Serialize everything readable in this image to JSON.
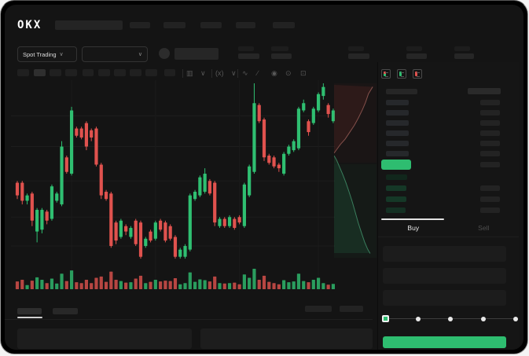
{
  "brand": {
    "logo": "OKX"
  },
  "nav": {
    "item_count": 5
  },
  "market_selector": {
    "label": "Spot Trading",
    "chevron": "∨"
  },
  "pair_selector": {
    "chevron": "∨"
  },
  "toolbar": {
    "active_timeframe_index": 1,
    "timeframe_widths": [
      15,
      15,
      15,
      15,
      14,
      15,
      15,
      15,
      15,
      14
    ],
    "icons": [
      {
        "name": "candle-type-icon",
        "glyph": "▥"
      },
      {
        "name": "chevron-down-icon",
        "glyph": "∨"
      },
      {
        "name": "indicators-icon",
        "glyph": "(x)"
      },
      {
        "name": "chevron-down-icon",
        "glyph": "∨"
      },
      {
        "name": "drawing-line-icon",
        "glyph": "∿"
      },
      {
        "name": "measure-icon",
        "glyph": "∕"
      },
      {
        "name": "snapshot-icon",
        "glyph": "◉"
      },
      {
        "name": "settings-icon",
        "glyph": "⊙"
      },
      {
        "name": "fullscreen-icon",
        "glyph": "⊡"
      }
    ]
  },
  "order_book": {
    "view_toggles": [
      {
        "name": "book-view-all-icon",
        "colors": [
          "#e0524e",
          "#2fbf71"
        ]
      },
      {
        "name": "book-view-bids-icon",
        "colors": [
          "#2fbf71"
        ]
      },
      {
        "name": "book-view-asks-icon",
        "colors": [
          "#e0524e"
        ]
      }
    ],
    "ask_rows": [
      {
        "price_w": 29,
        "amount_w": 25
      },
      {
        "price_w": 29,
        "amount_w": 25
      },
      {
        "price_w": 29,
        "amount_w": 25
      },
      {
        "price_w": 29,
        "amount_w": 25
      },
      {
        "price_w": 29,
        "amount_w": 25
      },
      {
        "price_w": 29,
        "amount_w": 25
      }
    ],
    "last_price": {
      "highlight_color": "#2ebd70",
      "amount_w": 25
    },
    "bid_rows": [
      {
        "price_w": 27,
        "amount_w": null,
        "tint": "#11271c"
      },
      {
        "price_w": 26,
        "amount_w": 25,
        "tint": "#153827"
      },
      {
        "price_w": 26,
        "amount_w": 25,
        "tint": "#153827"
      },
      {
        "price_w": 25,
        "amount_w": 25,
        "tint": "#143023"
      }
    ]
  },
  "trade_panel": {
    "tabs": [
      {
        "label": "Buy",
        "active": true
      },
      {
        "label": "Sell",
        "active": false
      }
    ],
    "input_count": 3,
    "slider": {
      "stops": 5,
      "active_stop": 0,
      "handle_color": "#2ebd70"
    },
    "submit": {
      "label": "",
      "color": "#2ebd70"
    }
  },
  "chart_data": {
    "type": "candlestick",
    "ylim": [
      0,
      100
    ],
    "colors": {
      "up": "#2fbf71",
      "down": "#e0524e"
    },
    "grid": {
      "h_values": [
        82,
        65,
        46,
        26,
        10
      ],
      "v_indices": [
        11,
        28,
        45,
        61
      ]
    },
    "candles": [
      [
        45,
        38,
        46,
        36
      ],
      [
        45,
        35,
        46,
        33
      ],
      [
        35,
        38,
        39,
        33
      ],
      [
        39,
        24,
        40,
        21
      ],
      [
        18,
        30,
        31,
        12
      ],
      [
        19,
        30,
        31,
        17
      ],
      [
        29,
        24,
        30,
        22
      ],
      [
        25,
        43,
        44,
        24
      ],
      [
        35,
        39,
        40,
        34
      ],
      [
        33,
        65,
        68,
        32
      ],
      [
        59,
        51,
        60,
        50
      ],
      [
        50,
        85,
        87,
        49
      ],
      [
        75,
        71,
        76,
        70
      ],
      [
        75,
        70,
        76,
        69
      ],
      [
        78,
        65,
        79,
        63
      ],
      [
        74,
        70,
        75,
        68
      ],
      [
        75,
        55,
        76,
        54
      ],
      [
        55,
        38,
        56,
        36
      ],
      [
        40,
        36,
        41,
        35
      ],
      [
        39,
        10,
        40,
        9
      ],
      [
        23,
        13,
        24,
        11
      ],
      [
        15,
        24,
        25,
        14
      ],
      [
        21,
        18,
        22,
        16
      ],
      [
        15,
        20,
        21,
        14
      ],
      [
        24,
        11,
        25,
        10
      ],
      [
        23,
        4,
        24,
        3
      ],
      [
        10,
        14,
        15,
        9
      ],
      [
        18,
        13,
        19,
        12
      ],
      [
        14,
        23,
        24,
        13
      ],
      [
        24,
        19,
        25,
        18
      ],
      [
        23,
        13,
        24,
        12
      ],
      [
        21,
        14,
        22,
        13
      ],
      [
        15,
        4,
        16,
        3
      ],
      [
        4,
        8,
        9,
        3
      ],
      [
        4,
        10,
        11,
        3
      ],
      [
        8,
        38,
        39,
        7
      ],
      [
        36,
        40,
        41,
        35
      ],
      [
        38,
        48,
        49,
        37
      ],
      [
        40,
        50,
        53,
        39
      ],
      [
        46,
        39,
        47,
        38
      ],
      [
        45,
        23,
        46,
        21
      ],
      [
        21,
        25,
        26,
        20
      ],
      [
        25,
        21,
        26,
        20
      ],
      [
        21,
        26,
        27,
        20
      ],
      [
        25,
        20,
        26,
        19
      ],
      [
        26,
        23,
        27,
        22
      ],
      [
        21,
        44,
        45,
        20
      ],
      [
        38,
        54,
        55,
        37
      ],
      [
        51,
        89,
        100,
        50
      ],
      [
        88,
        79,
        89,
        78
      ],
      [
        80,
        59,
        81,
        57
      ],
      [
        60,
        56,
        61,
        55
      ],
      [
        59,
        54,
        60,
        53
      ],
      [
        55,
        53,
        56,
        51
      ],
      [
        50,
        61,
        62,
        49
      ],
      [
        61,
        65,
        66,
        60
      ],
      [
        63,
        68,
        69,
        62
      ],
      [
        64,
        86,
        87,
        63
      ],
      [
        85,
        89,
        91,
        84
      ],
      [
        79,
        73,
        80,
        71
      ],
      [
        78,
        86,
        87,
        77
      ],
      [
        85,
        94,
        95,
        84
      ],
      [
        93,
        98,
        100,
        91
      ],
      [
        88,
        83,
        89,
        81
      ],
      [
        79,
        85,
        86,
        78
      ]
    ],
    "volume": [
      38,
      46,
      20,
      42,
      58,
      46,
      30,
      52,
      28,
      76,
      40,
      92,
      34,
      30,
      46,
      30,
      56,
      62,
      36,
      86,
      46,
      40,
      32,
      34,
      52,
      66,
      30,
      36,
      46,
      38,
      42,
      40,
      54,
      24,
      30,
      82,
      36,
      48,
      44,
      38,
      62,
      30,
      28,
      30,
      32,
      24,
      72,
      56,
      100,
      46,
      66,
      36,
      30,
      24,
      44,
      34,
      38,
      76,
      40,
      34,
      46,
      56,
      30,
      22,
      26
    ],
    "depth": {
      "ask_curve": [
        [
          0.91,
          0.02
        ],
        [
          0.81,
          0.06
        ],
        [
          0.74,
          0.11
        ],
        [
          0.67,
          0.15
        ],
        [
          0.57,
          0.2
        ],
        [
          0.48,
          0.24
        ],
        [
          0.37,
          0.28
        ],
        [
          0.26,
          0.32
        ],
        [
          0.15,
          0.35
        ],
        [
          0.06,
          0.38
        ],
        [
          0.0,
          0.4
        ]
      ],
      "bid_curve": [
        [
          0.0,
          0.415
        ],
        [
          0.06,
          0.44
        ],
        [
          0.13,
          0.48
        ],
        [
          0.2,
          0.52
        ],
        [
          0.28,
          0.57
        ],
        [
          0.35,
          0.62
        ],
        [
          0.43,
          0.68
        ],
        [
          0.5,
          0.74
        ],
        [
          0.57,
          0.8
        ],
        [
          0.65,
          0.86
        ],
        [
          0.72,
          0.91
        ],
        [
          0.79,
          0.95
        ],
        [
          0.85,
          0.975
        ]
      ]
    }
  }
}
